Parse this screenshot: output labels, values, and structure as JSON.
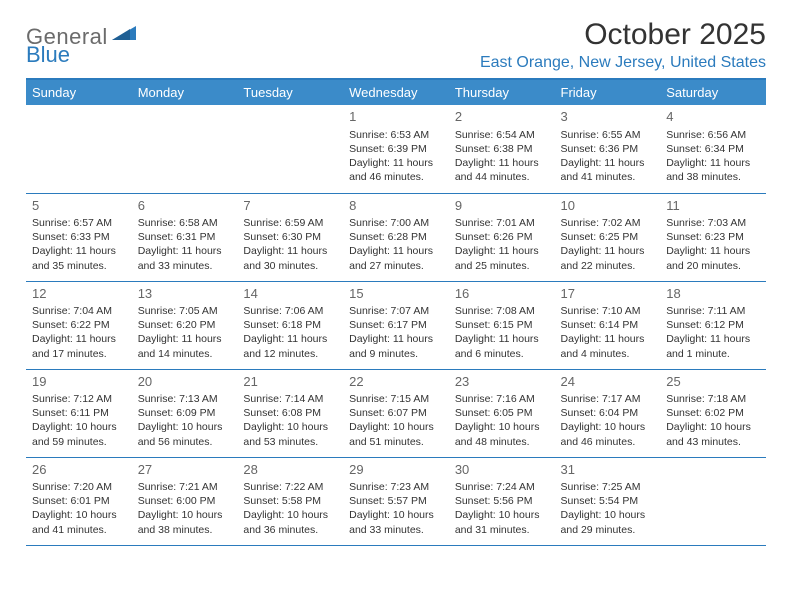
{
  "logo": {
    "gray": "General",
    "blue": "Blue"
  },
  "title": "October 2025",
  "location": "East Orange, New Jersey, United States",
  "colors": {
    "header_bg": "#3b8bc9",
    "header_text": "#ffffff",
    "accent": "#2b7bbd",
    "body_text": "#333333",
    "muted": "#6b6b6b",
    "daynum": "#666666",
    "background": "#ffffff"
  },
  "typography": {
    "title_fontsize": 30,
    "location_fontsize": 16,
    "weekday_fontsize": 13,
    "daynum_fontsize": 13,
    "cell_fontsize": 10.5,
    "logo_fontsize": 22
  },
  "weekdays": [
    "Sunday",
    "Monday",
    "Tuesday",
    "Wednesday",
    "Thursday",
    "Friday",
    "Saturday"
  ],
  "weeks": [
    [
      null,
      null,
      null,
      {
        "n": "1",
        "sr": "6:53 AM",
        "ss": "6:39 PM",
        "dl": "11 hours and 46 minutes."
      },
      {
        "n": "2",
        "sr": "6:54 AM",
        "ss": "6:38 PM",
        "dl": "11 hours and 44 minutes."
      },
      {
        "n": "3",
        "sr": "6:55 AM",
        "ss": "6:36 PM",
        "dl": "11 hours and 41 minutes."
      },
      {
        "n": "4",
        "sr": "6:56 AM",
        "ss": "6:34 PM",
        "dl": "11 hours and 38 minutes."
      }
    ],
    [
      {
        "n": "5",
        "sr": "6:57 AM",
        "ss": "6:33 PM",
        "dl": "11 hours and 35 minutes."
      },
      {
        "n": "6",
        "sr": "6:58 AM",
        "ss": "6:31 PM",
        "dl": "11 hours and 33 minutes."
      },
      {
        "n": "7",
        "sr": "6:59 AM",
        "ss": "6:30 PM",
        "dl": "11 hours and 30 minutes."
      },
      {
        "n": "8",
        "sr": "7:00 AM",
        "ss": "6:28 PM",
        "dl": "11 hours and 27 minutes."
      },
      {
        "n": "9",
        "sr": "7:01 AM",
        "ss": "6:26 PM",
        "dl": "11 hours and 25 minutes."
      },
      {
        "n": "10",
        "sr": "7:02 AM",
        "ss": "6:25 PM",
        "dl": "11 hours and 22 minutes."
      },
      {
        "n": "11",
        "sr": "7:03 AM",
        "ss": "6:23 PM",
        "dl": "11 hours and 20 minutes."
      }
    ],
    [
      {
        "n": "12",
        "sr": "7:04 AM",
        "ss": "6:22 PM",
        "dl": "11 hours and 17 minutes."
      },
      {
        "n": "13",
        "sr": "7:05 AM",
        "ss": "6:20 PM",
        "dl": "11 hours and 14 minutes."
      },
      {
        "n": "14",
        "sr": "7:06 AM",
        "ss": "6:18 PM",
        "dl": "11 hours and 12 minutes."
      },
      {
        "n": "15",
        "sr": "7:07 AM",
        "ss": "6:17 PM",
        "dl": "11 hours and 9 minutes."
      },
      {
        "n": "16",
        "sr": "7:08 AM",
        "ss": "6:15 PM",
        "dl": "11 hours and 6 minutes."
      },
      {
        "n": "17",
        "sr": "7:10 AM",
        "ss": "6:14 PM",
        "dl": "11 hours and 4 minutes."
      },
      {
        "n": "18",
        "sr": "7:11 AM",
        "ss": "6:12 PM",
        "dl": "11 hours and 1 minute."
      }
    ],
    [
      {
        "n": "19",
        "sr": "7:12 AM",
        "ss": "6:11 PM",
        "dl": "10 hours and 59 minutes."
      },
      {
        "n": "20",
        "sr": "7:13 AM",
        "ss": "6:09 PM",
        "dl": "10 hours and 56 minutes."
      },
      {
        "n": "21",
        "sr": "7:14 AM",
        "ss": "6:08 PM",
        "dl": "10 hours and 53 minutes."
      },
      {
        "n": "22",
        "sr": "7:15 AM",
        "ss": "6:07 PM",
        "dl": "10 hours and 51 minutes."
      },
      {
        "n": "23",
        "sr": "7:16 AM",
        "ss": "6:05 PM",
        "dl": "10 hours and 48 minutes."
      },
      {
        "n": "24",
        "sr": "7:17 AM",
        "ss": "6:04 PM",
        "dl": "10 hours and 46 minutes."
      },
      {
        "n": "25",
        "sr": "7:18 AM",
        "ss": "6:02 PM",
        "dl": "10 hours and 43 minutes."
      }
    ],
    [
      {
        "n": "26",
        "sr": "7:20 AM",
        "ss": "6:01 PM",
        "dl": "10 hours and 41 minutes."
      },
      {
        "n": "27",
        "sr": "7:21 AM",
        "ss": "6:00 PM",
        "dl": "10 hours and 38 minutes."
      },
      {
        "n": "28",
        "sr": "7:22 AM",
        "ss": "5:58 PM",
        "dl": "10 hours and 36 minutes."
      },
      {
        "n": "29",
        "sr": "7:23 AM",
        "ss": "5:57 PM",
        "dl": "10 hours and 33 minutes."
      },
      {
        "n": "30",
        "sr": "7:24 AM",
        "ss": "5:56 PM",
        "dl": "10 hours and 31 minutes."
      },
      {
        "n": "31",
        "sr": "7:25 AM",
        "ss": "5:54 PM",
        "dl": "10 hours and 29 minutes."
      },
      null
    ]
  ],
  "labels": {
    "sunrise_prefix": "Sunrise: ",
    "sunset_prefix": "Sunset: ",
    "daylight_prefix": "Daylight: "
  }
}
